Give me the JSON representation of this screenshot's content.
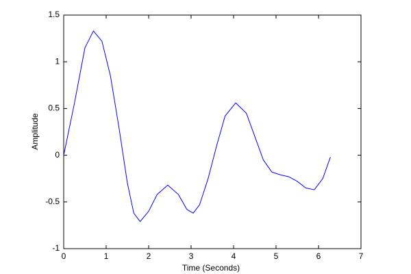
{
  "chart_data": {
    "type": "line",
    "xlabel": "Time (Seconds)",
    "ylabel": "Amplitude",
    "x": [
      0,
      0.25,
      0.5,
      0.7,
      0.9,
      1.1,
      1.3,
      1.5,
      1.65,
      1.8,
      2.0,
      2.2,
      2.45,
      2.7,
      2.9,
      3.05,
      3.2,
      3.4,
      3.6,
      3.8,
      4.05,
      4.3,
      4.5,
      4.7,
      4.9,
      5.1,
      5.3,
      5.5,
      5.7,
      5.9,
      6.1,
      6.28
    ],
    "series": [
      {
        "color": "#0000ff",
        "values": [
          0,
          0.55,
          1.15,
          1.33,
          1.22,
          0.85,
          0.3,
          -0.3,
          -0.62,
          -0.71,
          -0.6,
          -0.42,
          -0.32,
          -0.42,
          -0.58,
          -0.62,
          -0.53,
          -0.25,
          0.1,
          0.42,
          0.56,
          0.45,
          0.2,
          -0.05,
          -0.18,
          -0.21,
          -0.23,
          -0.28,
          -0.35,
          -0.37,
          -0.25,
          -0.02
        ]
      }
    ],
    "xlim": [
      0,
      7
    ],
    "xticks": [
      0,
      1,
      2,
      3,
      4,
      5,
      6,
      7
    ],
    "ylim": [
      -1,
      1.5
    ],
    "yticks": [
      -1,
      -0.5,
      0,
      0.5,
      1,
      1.5
    ]
  }
}
